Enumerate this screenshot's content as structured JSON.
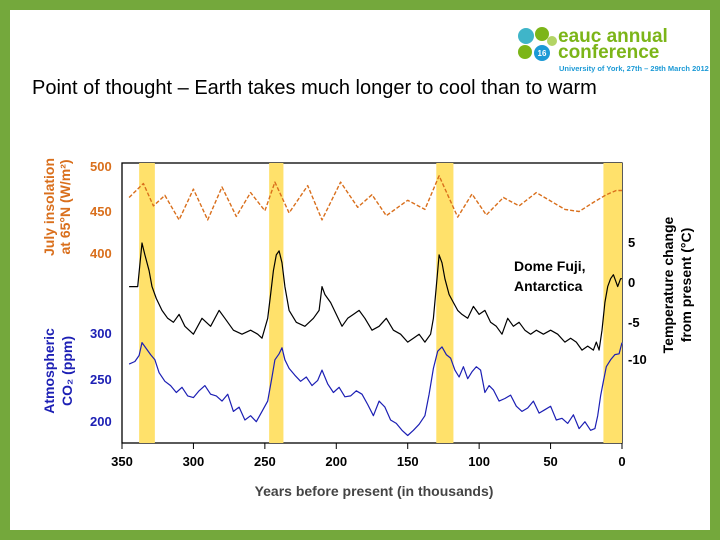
{
  "title": "Point of thought – Earth takes much longer to cool than to warm",
  "logo": {
    "badge": "16",
    "brand_line1": "eauc annual",
    "brand_line2": "conference",
    "tagline": "University of York, 27th – 29th March 2012"
  },
  "colors": {
    "slide_border": "#74a83c",
    "insolation": "#d96f1c",
    "temperature": "#000000",
    "co2": "#1c1fb4",
    "interglacial": "#ffe16b"
  },
  "chart_data": {
    "type": "line",
    "title": "",
    "xlabel": "Years before present (in thousands)",
    "x_ticks": [
      "350",
      "300",
      "250",
      "200",
      "150",
      "100",
      "50",
      "0"
    ],
    "xlim": [
      350,
      0
    ],
    "annotation": [
      "Dome Fuji,",
      "Antarctica"
    ],
    "insolation_axis": {
      "label_line1": "July insolation",
      "label_line2": "at 65°N (W/m²)",
      "ticks": [
        "500",
        "450",
        "400"
      ],
      "range": [
        400,
        500
      ]
    },
    "co2_axis": {
      "label_line1": "Atmospheric",
      "label_line2": "CO₂ (ppm)",
      "ticks": [
        "300",
        "250",
        "200"
      ],
      "range": [
        200,
        300
      ]
    },
    "temperature_axis": {
      "label_line1": "Temperature change",
      "label_line2": "from present (°C)",
      "ticks": [
        "5",
        "0",
        "-5",
        "-10"
      ],
      "range": [
        -10,
        5
      ]
    },
    "interglacial_bands_kyr": [
      [
        338,
        327
      ],
      [
        247,
        237
      ],
      [
        130,
        118
      ],
      [
        13,
        0
      ]
    ],
    "series": [
      {
        "name": "July insolation at 65°N",
        "color": "#d96f1c",
        "x": [
          345,
          335,
          328,
          320,
          310,
          300,
          290,
          280,
          270,
          260,
          250,
          243,
          233,
          220,
          210,
          197,
          185,
          175,
          165,
          150,
          138,
          128,
          115,
          105,
          95,
          83,
          72,
          60,
          50,
          40,
          30,
          20,
          11,
          4,
          0
        ],
        "y": [
          475,
          495,
          463,
          478,
          443,
          487,
          443,
          490,
          448,
          482,
          456,
          497,
          453,
          492,
          443,
          497,
          461,
          479,
          449,
          471,
          458,
          506,
          447,
          480,
          450,
          475,
          463,
          482,
          470,
          458,
          455,
          468,
          479,
          485,
          485
        ]
      },
      {
        "name": "Temperature change (Dome Fuji)",
        "color": "#000000",
        "x": [
          345,
          339,
          336,
          334,
          331,
          329,
          326,
          322,
          318,
          314,
          310,
          306,
          300,
          294,
          288,
          282,
          278,
          272,
          266,
          260,
          255,
          252,
          248,
          246,
          244,
          242,
          240,
          238,
          236,
          233,
          228,
          222,
          216,
          212,
          210,
          208,
          204,
          200,
          196,
          192,
          188,
          184,
          180,
          175,
          170,
          165,
          160,
          155,
          150,
          146,
          142,
          138,
          134,
          132,
          130,
          128,
          126,
          124,
          121,
          118,
          115,
          112,
          108,
          104,
          100,
          96,
          92,
          88,
          84,
          80,
          76,
          72,
          68,
          64,
          60,
          55,
          50,
          45,
          40,
          36,
          32,
          28,
          24,
          20,
          18,
          16,
          14,
          12,
          10,
          8,
          6,
          3,
          1,
          0
        ],
        "y": [
          -1,
          -1,
          4.5,
          3,
          1,
          -1,
          -2.5,
          -4,
          -5,
          -5.5,
          -4.5,
          -6,
          -7,
          -5,
          -6,
          -4,
          -5,
          -6.5,
          -7,
          -6.5,
          -7,
          -7.5,
          -5,
          -2,
          1,
          3,
          3.5,
          2,
          -1,
          -4,
          -5.5,
          -6,
          -5,
          -4,
          -1,
          -2,
          -3,
          -4.5,
          -6,
          -5,
          -4.5,
          -4,
          -5,
          -6.5,
          -6,
          -5,
          -6.5,
          -7,
          -8,
          -7.5,
          -7,
          -8,
          -7,
          -5,
          -1,
          3,
          2,
          0,
          -2,
          -3,
          -4,
          -4.5,
          -5,
          -3.5,
          -4.5,
          -4,
          -5.5,
          -6,
          -7,
          -5,
          -6,
          -5.5,
          -6.5,
          -7,
          -6.5,
          -7,
          -6.5,
          -7,
          -8,
          -7.5,
          -8,
          -9,
          -8.5,
          -9,
          -8,
          -9,
          -6.5,
          -3,
          -1,
          0,
          0.5,
          -1,
          0,
          0
        ]
      },
      {
        "name": "Atmospheric CO2",
        "color": "#1c1fb4",
        "x": [
          345,
          341,
          338,
          336,
          333,
          330,
          327,
          324,
          320,
          316,
          312,
          308,
          304,
          300,
          296,
          292,
          288,
          284,
          280,
          276,
          272,
          268,
          264,
          260,
          256,
          252,
          248,
          245,
          243,
          240,
          238,
          236,
          233,
          229,
          225,
          221,
          217,
          213,
          210,
          206,
          202,
          198,
          194,
          190,
          186,
          182,
          178,
          174,
          170,
          166,
          162,
          158,
          154,
          150,
          146,
          142,
          138,
          135,
          132,
          129,
          126,
          123,
          120,
          117,
          114,
          111,
          108,
          105,
          102,
          99,
          96,
          93,
          90,
          86,
          82,
          78,
          74,
          70,
          66,
          62,
          58,
          54,
          50,
          46,
          42,
          38,
          34,
          30,
          26,
          22,
          19,
          17,
          15,
          13,
          11,
          8,
          5,
          2,
          0
        ],
        "y": [
          265,
          268,
          275,
          290,
          283,
          276,
          270,
          255,
          245,
          240,
          232,
          238,
          228,
          226,
          234,
          240,
          230,
          228,
          222,
          230,
          210,
          215,
          200,
          205,
          198,
          210,
          222,
          250,
          270,
          277,
          284,
          270,
          260,
          252,
          245,
          250,
          240,
          246,
          258,
          242,
          232,
          238,
          227,
          228,
          234,
          230,
          218,
          205,
          222,
          215,
          200,
          196,
          188,
          182,
          188,
          195,
          205,
          230,
          260,
          280,
          285,
          276,
          272,
          258,
          250,
          262,
          248,
          256,
          262,
          258,
          232,
          240,
          235,
          222,
          225,
          229,
          216,
          210,
          214,
          222,
          208,
          212,
          216,
          200,
          202,
          196,
          206,
          190,
          198,
          188,
          190,
          205,
          228,
          245,
          262,
          270,
          276,
          277,
          290
        ]
      }
    ]
  }
}
